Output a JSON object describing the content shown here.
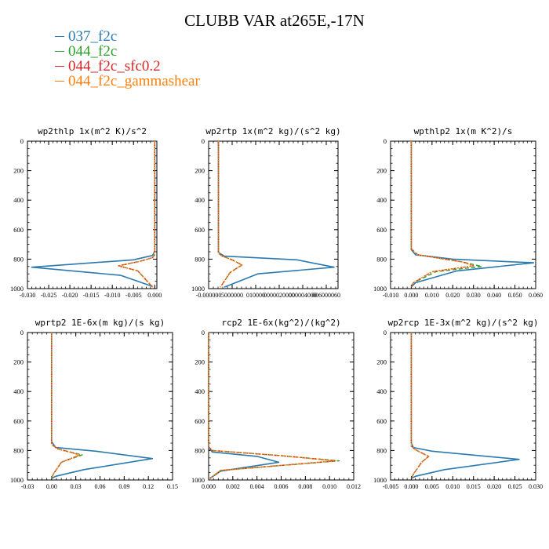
{
  "title": "CLUBB VAR at265E,-17N",
  "legend": [
    {
      "name": "037_f2c",
      "color": "#2a7ab0"
    },
    {
      "name": "044_f2c",
      "color": "#2ca02c"
    },
    {
      "name": "044_f2c_sfc0.2",
      "color": "#d62728"
    },
    {
      "name": "044_f2c_gammashear",
      "color": "#ff7f0e"
    }
  ],
  "chart_data": [
    {
      "type": "line",
      "title": "wp2thlp  1x(m^2 K)/s^2",
      "xlim": [
        -0.03,
        0.0005
      ],
      "xticks": [
        -0.03,
        -0.025,
        -0.02,
        -0.015,
        -0.01,
        -0.005,
        0.0
      ],
      "xtick_labels": [
        "-0.030",
        "-0.025",
        "-0.020",
        "-0.015",
        "-0.010",
        "-0.005",
        "0.000"
      ],
      "ylim": [
        0,
        1000
      ],
      "yticks": [
        0,
        200,
        400,
        600,
        800,
        1000
      ],
      "series": [
        {
          "name": "037_f2c",
          "x": [
            0,
            0,
            -0.0005,
            -0.005,
            -0.029,
            -0.008,
            -0.0005
          ],
          "y": [
            0,
            745,
            775,
            805,
            855,
            910,
            985
          ]
        },
        {
          "name": "044_f2c",
          "x": [
            0,
            0,
            -0.0005,
            -0.0035,
            -0.0085,
            -0.004,
            -0.0005
          ],
          "y": [
            0,
            770,
            790,
            815,
            845,
            880,
            990
          ]
        },
        {
          "name": "044_f2c_sfc0.2",
          "x": [
            0,
            0,
            -0.0005,
            -0.0035,
            -0.0085,
            -0.004,
            -0.0005
          ],
          "y": [
            0,
            770,
            790,
            815,
            845,
            880,
            990
          ]
        },
        {
          "name": "044_f2c_gammashear",
          "x": [
            0,
            0,
            -0.0005,
            -0.0035,
            -0.0085,
            -0.004,
            -0.0005
          ],
          "y": [
            0,
            770,
            790,
            815,
            845,
            880,
            990
          ]
        }
      ]
    },
    {
      "type": "line",
      "title": "wp2rtp  1x(m^2 kg)/(s^2 kg)",
      "xlim": [
        -5e-07,
        6.1e-06
      ],
      "xticks": [
        -5e-07,
        7e-07,
        1.9e-06,
        3.1e-06,
        4.3e-06,
        5.5e-06
      ],
      "xtick_labels": [
        "-0.000000",
        "5000000",
        "010000",
        "0000020000",
        "000004000",
        "006000060"
      ],
      "ylim": [
        0,
        1000
      ],
      "yticks": [
        0,
        200,
        400,
        600,
        800,
        1000
      ],
      "series": [
        {
          "name": "037_f2c",
          "x": [
            0,
            0,
            3e-07,
            4e-06,
            5.9e-06,
            2e-06,
            3e-07
          ],
          "y": [
            0,
            755,
            780,
            805,
            855,
            900,
            990
          ]
        },
        {
          "name": "044_f2c",
          "x": [
            0,
            0,
            2e-07,
            7e-07,
            1.2e-06,
            6e-07,
            1e-07
          ],
          "y": [
            0,
            760,
            780,
            805,
            840,
            890,
            990
          ]
        },
        {
          "name": "044_f2c_sfc0.2",
          "x": [
            0,
            0,
            2e-07,
            7e-07,
            1.2e-06,
            6e-07,
            1e-07
          ],
          "y": [
            0,
            760,
            780,
            805,
            840,
            890,
            990
          ]
        },
        {
          "name": "044_f2c_gammashear",
          "x": [
            0,
            0,
            2e-07,
            7e-07,
            1.2e-06,
            6e-07,
            1e-07
          ],
          "y": [
            0,
            760,
            780,
            805,
            840,
            890,
            990
          ]
        }
      ]
    },
    {
      "type": "line",
      "title": "wpthlp2  1x(m K^2)/s",
      "xlim": [
        -0.01,
        0.06
      ],
      "xticks": [
        -0.01,
        0.0,
        0.01,
        0.02,
        0.03,
        0.04,
        0.05,
        0.06
      ],
      "xtick_labels": [
        "-0.010",
        "0.000",
        "0.010",
        "0.020",
        "0.030",
        "0.040",
        "0.050",
        "0.060"
      ],
      "ylim": [
        0,
        1000
      ],
      "yticks": [
        0,
        200,
        400,
        600,
        800,
        1000
      ],
      "series": [
        {
          "name": "037_f2c",
          "x": [
            0,
            0,
            0.002,
            0.02,
            0.059,
            0.022,
            0.002,
            0
          ],
          "y": [
            0,
            735,
            770,
            800,
            825,
            880,
            960,
            990
          ]
        },
        {
          "name": "044_f2c",
          "x": [
            0,
            0,
            0.003,
            0.025,
            0.034,
            0.012,
            0.001,
            0
          ],
          "y": [
            0,
            730,
            770,
            820,
            850,
            885,
            960,
            990
          ]
        },
        {
          "name": "044_f2c_sfc0.2",
          "x": [
            0,
            0,
            0.003,
            0.025,
            0.03,
            0.01,
            0.001,
            0
          ],
          "y": [
            0,
            730,
            770,
            820,
            845,
            885,
            960,
            990
          ]
        },
        {
          "name": "044_f2c_gammashear",
          "x": [
            0,
            0,
            0.003,
            0.025,
            0.03,
            0.01,
            0.001,
            0
          ],
          "y": [
            0,
            730,
            770,
            820,
            845,
            885,
            960,
            990
          ]
        }
      ]
    },
    {
      "type": "line",
      "title": "wprtp2  1E-6x(m kg)/(s kg)",
      "xlim": [
        -0.03,
        0.15
      ],
      "xticks": [
        -0.03,
        0.0,
        0.03,
        0.06,
        0.09,
        0.12,
        0.15
      ],
      "xtick_labels": [
        "-0.03",
        "0.00",
        "0.03",
        "0.06",
        "0.09",
        "0.12",
        "0.15"
      ],
      "ylim": [
        0,
        1000
      ],
      "yticks": [
        0,
        200,
        400,
        600,
        800,
        1000
      ],
      "series": [
        {
          "name": "037_f2c",
          "x": [
            0,
            0,
            0.005,
            0.055,
            0.125,
            0.04,
            0.005,
            0
          ],
          "y": [
            0,
            740,
            780,
            805,
            855,
            930,
            975,
            990
          ]
        },
        {
          "name": "044_f2c",
          "x": [
            0,
            0,
            0.008,
            0.038,
            0.012,
            0.002,
            0
          ],
          "y": [
            0,
            760,
            790,
            830,
            880,
            960,
            990
          ]
        },
        {
          "name": "044_f2c_sfc0.2",
          "x": [
            0,
            0,
            0.008,
            0.035,
            0.012,
            0.002,
            0
          ],
          "y": [
            0,
            760,
            790,
            830,
            880,
            960,
            990
          ]
        },
        {
          "name": "044_f2c_gammashear",
          "x": [
            0,
            0,
            0.008,
            0.035,
            0.012,
            0.002,
            0
          ],
          "y": [
            0,
            760,
            790,
            830,
            880,
            960,
            990
          ]
        }
      ]
    },
    {
      "type": "line",
      "title": "rcp2  1E-6x(kg^2)/(kg^2)",
      "xlim": [
        0.0,
        0.012
      ],
      "xticks": [
        0.0,
        0.002,
        0.004,
        0.006,
        0.008,
        0.01,
        0.012
      ],
      "xtick_labels": [
        "0.000",
        "0.002",
        "0.004",
        "0.006",
        "0.008",
        "0.010",
        "0.012"
      ],
      "ylim": [
        0,
        1000
      ],
      "yticks": [
        0,
        200,
        400,
        600,
        800,
        1000
      ],
      "series": [
        {
          "name": "037_f2c",
          "x": [
            0,
            0,
            0.0003,
            0.004,
            0.0058,
            0.001,
            0.0001
          ],
          "y": [
            0,
            780,
            810,
            840,
            880,
            940,
            990
          ]
        },
        {
          "name": "044_f2c",
          "x": [
            0,
            0,
            0.0003,
            0.006,
            0.0108,
            0.001,
            0.0001
          ],
          "y": [
            0,
            775,
            800,
            835,
            870,
            935,
            990
          ]
        },
        {
          "name": "044_f2c_sfc0.2",
          "x": [
            0,
            0,
            0.0003,
            0.006,
            0.0105,
            0.001,
            0.0001
          ],
          "y": [
            0,
            775,
            800,
            835,
            870,
            935,
            990
          ]
        },
        {
          "name": "044_f2c_gammashear",
          "x": [
            0,
            0,
            0.0003,
            0.006,
            0.0105,
            0.001,
            0.0001
          ],
          "y": [
            0,
            775,
            800,
            835,
            870,
            935,
            990
          ]
        }
      ]
    },
    {
      "type": "line",
      "title": "wp2rcp  1E-3x(m^2 kg)/(s^2 kg)",
      "xlim": [
        -0.005,
        0.03
      ],
      "xticks": [
        -0.005,
        0.0,
        0.005,
        0.01,
        0.015,
        0.02,
        0.025,
        0.03
      ],
      "xtick_labels": [
        "-0.005",
        "0.000",
        "0.005",
        "0.010",
        "0.015",
        "0.020",
        "0.025",
        "0.030"
      ],
      "ylim": [
        0,
        1000
      ],
      "yticks": [
        0,
        200,
        400,
        600,
        800,
        1000
      ],
      "series": [
        {
          "name": "037_f2c",
          "x": [
            0,
            0,
            0.0005,
            0.005,
            0.026,
            0.008,
            0.001,
            0
          ],
          "y": [
            0,
            750,
            780,
            805,
            860,
            930,
            975,
            990
          ]
        },
        {
          "name": "044_f2c",
          "x": [
            0,
            0,
            0.001,
            0.0042,
            0.0025,
            0.0005,
            0
          ],
          "y": [
            0,
            770,
            795,
            840,
            880,
            960,
            990
          ]
        },
        {
          "name": "044_f2c_sfc0.2",
          "x": [
            0,
            0,
            0.001,
            0.0042,
            0.0025,
            0.0005,
            0
          ],
          "y": [
            0,
            770,
            795,
            840,
            880,
            960,
            990
          ]
        },
        {
          "name": "044_f2c_gammashear",
          "x": [
            0,
            0,
            0.001,
            0.0042,
            0.0025,
            0.0005,
            0
          ],
          "y": [
            0,
            770,
            795,
            840,
            880,
            960,
            990
          ]
        }
      ]
    }
  ]
}
